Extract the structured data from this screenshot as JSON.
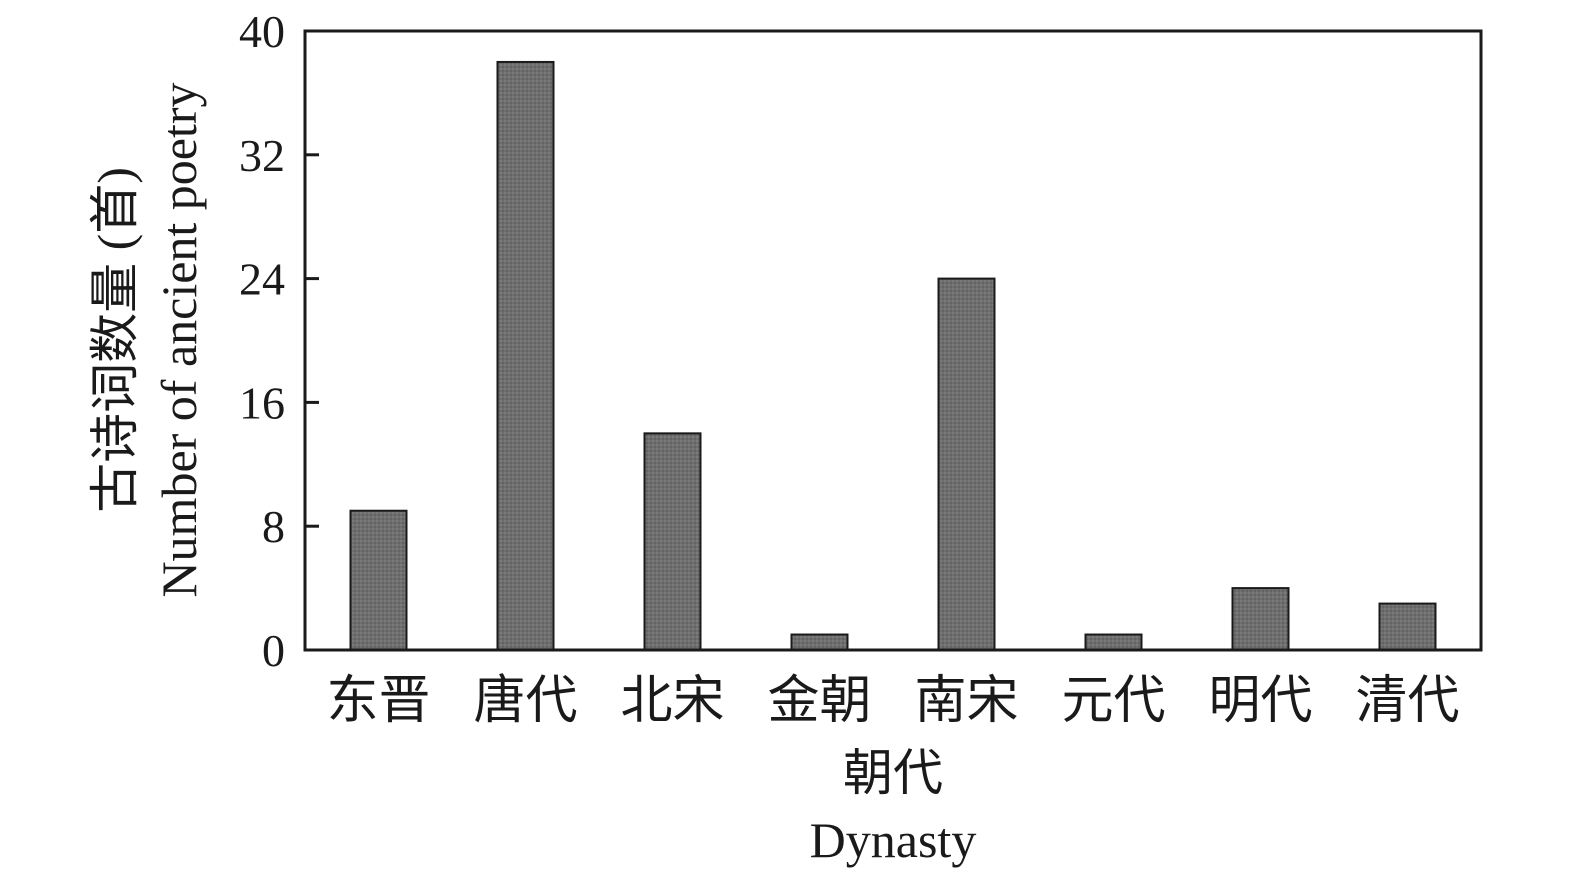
{
  "chart_data": {
    "type": "bar",
    "categories": [
      "东晋",
      "唐代",
      "北宋",
      "金朝",
      "南宋",
      "元代",
      "明代",
      "清代"
    ],
    "values": [
      9,
      38,
      14,
      1,
      24,
      1,
      4,
      3
    ],
    "ylim": [
      0,
      40
    ],
    "yticks": [
      0,
      8,
      16,
      24,
      32,
      40
    ],
    "xlabel_cn": "朝代",
    "xlabel_en": "Dynasty",
    "ylabel_cn": "古诗词数量 (首)",
    "ylabel_en": "Number of ancient poetry",
    "bar_color": "#6e6e6e",
    "bar_edge_color": "#1a1a1a",
    "grid": false,
    "legend": "none"
  }
}
